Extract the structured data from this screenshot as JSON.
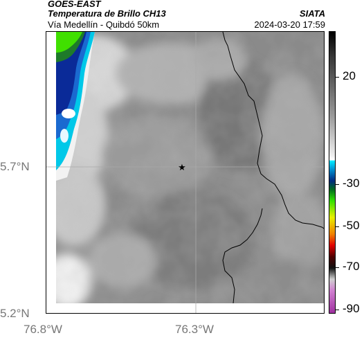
{
  "header": {
    "satellite": "GOES-EAST",
    "product": "Temperatura de Brillo CH13",
    "route": "Vía Medellín - Quibdó 50km",
    "brand": "SIATA",
    "datetime": "2024-03-20 17:59"
  },
  "map": {
    "lat_labels": [
      "5.7°N",
      "5.2°N"
    ],
    "lon_labels": [
      "76.8°W",
      "76.3°W"
    ],
    "marker": "star-icon"
  },
  "colorbar": {
    "labels": [
      "20",
      "-30",
      "-50",
      "-70",
      "-90"
    ],
    "colors": {
      "warm_gray": "#888888",
      "cold_cyan": "#00d0f0",
      "cold_blue": "#0030a0",
      "cold_green": "#30d000",
      "yellow": "#f0f000",
      "red": "#e00000",
      "magenta": "#c040c0"
    }
  }
}
